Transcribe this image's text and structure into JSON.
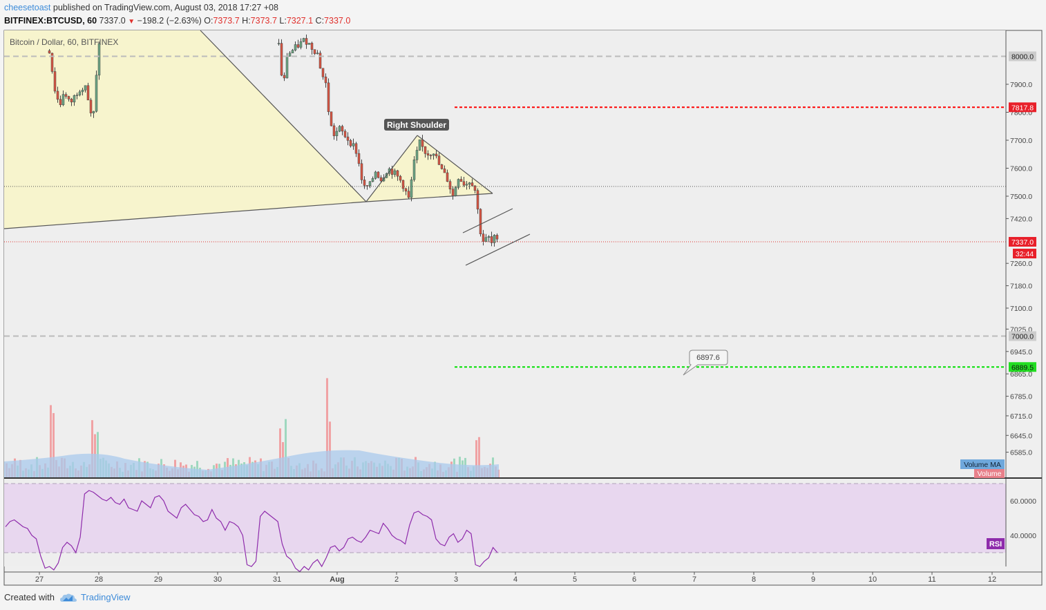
{
  "header": {
    "author": "cheesetoast",
    "published_text": "published on TradingView.com, August 03, 2018 17:27 +08",
    "symbol": "BITFINEX:BTCUSD, 60",
    "last_price": "7337.0",
    "change": "−198.2 (−2.63%)",
    "o_label": "O:",
    "o_value": "7373.7",
    "h_label": "H:",
    "h_value": "7373.7",
    "l_label": "L:",
    "l_value": "7327.1",
    "c_label": "C:",
    "c_value": "7337.0"
  },
  "footer": {
    "created_with": "Created with",
    "brand": "TradingView"
  },
  "colors": {
    "up": "#6ba583",
    "down": "#d75442",
    "volume_up": "#9fd8bf",
    "volume_down": "#f0a2a4",
    "volume_ma": "#a9c9ec",
    "resistance": "#ff0000",
    "support": "#00e000",
    "rsi_line": "#8e2bab",
    "rsi_band": "#e8d7ef",
    "pattern_fill": "#f7f4cd"
  },
  "chart_data": {
    "type": "candlestick",
    "title": "Bitcoin / Dollar, 60, BITFINEX",
    "x_ticks": [
      "27",
      "28",
      "29",
      "30",
      "31",
      "Aug",
      "2",
      "3",
      "4",
      "5",
      "6",
      "7",
      "8",
      "9",
      "10",
      "11",
      "12"
    ],
    "y_ticks": [
      "7900.0",
      "7800.0",
      "7700.0",
      "7600.0",
      "7500.0",
      "7420.0",
      "7260.0",
      "7180.0",
      "7100.0",
      "7025.0",
      "6945.0",
      "6865.0",
      "6785.0",
      "6715.0",
      "6645.0",
      "6585.0"
    ],
    "horizontal_levels": [
      {
        "value": 8000.0,
        "label": "8000.0",
        "style": "dashed-gray"
      },
      {
        "value": 7817.8,
        "label": "7817.8",
        "style": "dashed-red"
      },
      {
        "value": 7000.0,
        "label": "7000.0",
        "style": "dashed-gray"
      },
      {
        "value": 6889.5,
        "label": "6889.5",
        "style": "dashed-green"
      }
    ],
    "last_price_label": "7337.0",
    "countdown_label": "32:44",
    "annotations": [
      {
        "text": "Right Shoulder"
      },
      {
        "text": "6897.6"
      }
    ],
    "legend": [
      "Volume MA",
      "Volume"
    ],
    "rsi": {
      "label": "RSI",
      "y_ticks": [
        "60.0000",
        "40.0000"
      ],
      "values": [
        45,
        48,
        49,
        47,
        45,
        44,
        40,
        38,
        28,
        21,
        22,
        20,
        24,
        33,
        36,
        34,
        30,
        39,
        64,
        66,
        65,
        63,
        61,
        60,
        62,
        59,
        58,
        61,
        56,
        55,
        54,
        60,
        58,
        56,
        62,
        63,
        60,
        54,
        52,
        50,
        56,
        58,
        55,
        52,
        51,
        48,
        49,
        55,
        50,
        48,
        43,
        48,
        47,
        45,
        40,
        23,
        22,
        25,
        51,
        54,
        52,
        50,
        48,
        35,
        28,
        26,
        21,
        19,
        22,
        20,
        24,
        26,
        22,
        27,
        33,
        34,
        31,
        33,
        38,
        39,
        37,
        36,
        39,
        43,
        42,
        41,
        47,
        44,
        40,
        38,
        37,
        35,
        46,
        53,
        54,
        52,
        51,
        49,
        38,
        35,
        34,
        39,
        41,
        36,
        38,
        43,
        41,
        23,
        22,
        25,
        27,
        33,
        30
      ]
    }
  }
}
